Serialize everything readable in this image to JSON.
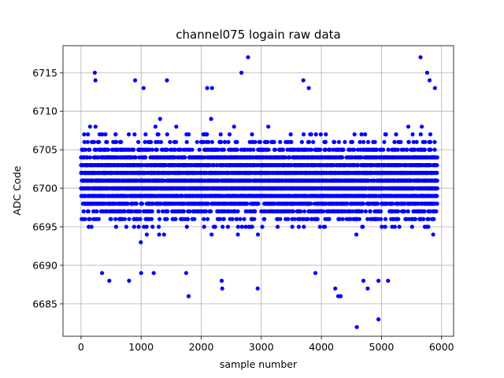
{
  "chart_data": {
    "type": "scatter",
    "title": "channel075 logain raw data",
    "xlabel": "sample number",
    "ylabel": "ADC Code",
    "xlim": [
      -300,
      6200
    ],
    "ylim": [
      6680.8,
      6718.5
    ],
    "xticks": [
      0,
      1000,
      2000,
      3000,
      4000,
      5000,
      6000
    ],
    "yticks": [
      6685,
      6690,
      6695,
      6700,
      6705,
      6710,
      6715
    ],
    "grid": true,
    "series": [
      {
        "color": "#0000ff",
        "n_samples": 5930,
        "typical_range": [
          6690,
          6710
        ],
        "center": 6701,
        "outliers": [
          {
            "x": 230,
            "y": 6715
          },
          {
            "x": 240,
            "y": 6714
          },
          {
            "x": 900,
            "y": 6714
          },
          {
            "x": 1040,
            "y": 6713
          },
          {
            "x": 1430,
            "y": 6714
          },
          {
            "x": 2100,
            "y": 6713
          },
          {
            "x": 2180,
            "y": 6713
          },
          {
            "x": 2670,
            "y": 6715
          },
          {
            "x": 2780,
            "y": 6717
          },
          {
            "x": 3700,
            "y": 6714
          },
          {
            "x": 3790,
            "y": 6713
          },
          {
            "x": 5650,
            "y": 6717
          },
          {
            "x": 5760,
            "y": 6715
          },
          {
            "x": 5800,
            "y": 6714
          },
          {
            "x": 5890,
            "y": 6713
          },
          {
            "x": 1790,
            "y": 6686
          },
          {
            "x": 2340,
            "y": 6688
          },
          {
            "x": 2350,
            "y": 6687
          },
          {
            "x": 2940,
            "y": 6687
          },
          {
            "x": 3900,
            "y": 6689
          },
          {
            "x": 4230,
            "y": 6687
          },
          {
            "x": 4280,
            "y": 6686
          },
          {
            "x": 4320,
            "y": 6686
          },
          {
            "x": 4590,
            "y": 6682
          },
          {
            "x": 4950,
            "y": 6683
          },
          {
            "x": 4770,
            "y": 6687
          },
          {
            "x": 4700,
            "y": 6688
          },
          {
            "x": 470,
            "y": 6688
          },
          {
            "x": 800,
            "y": 6688
          },
          {
            "x": 1000,
            "y": 6689
          },
          {
            "x": 1210,
            "y": 6689
          },
          {
            "x": 350,
            "y": 6689
          },
          {
            "x": 1750,
            "y": 6689
          },
          {
            "x": 4950,
            "y": 6688
          },
          {
            "x": 5110,
            "y": 6688
          }
        ]
      }
    ]
  }
}
